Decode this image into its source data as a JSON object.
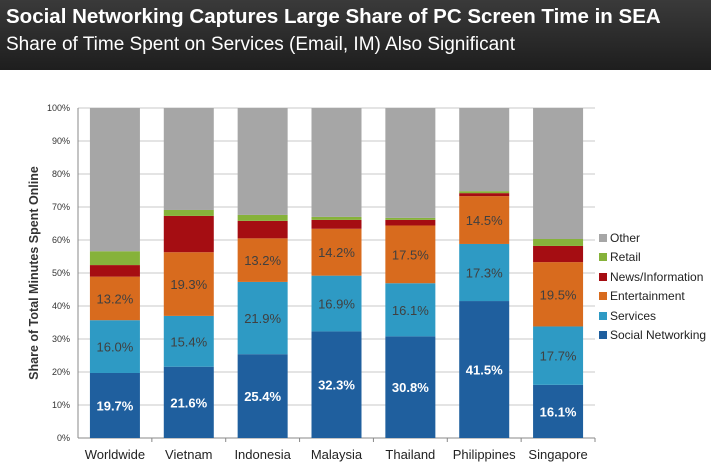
{
  "header": {
    "title": "Social Networking Captures Large Share of PC Screen Time in SEA",
    "subtitle": "Share of Time Spent on Services (Email, IM) Also Significant"
  },
  "chart_data": {
    "type": "bar",
    "stacked": true,
    "title": "",
    "xlabel": "",
    "ylabel": "Share of Total Minutes Spent Online",
    "ylim": [
      0,
      100
    ],
    "yticks": [
      "0%",
      "10%",
      "20%",
      "30%",
      "40%",
      "50%",
      "60%",
      "70%",
      "80%",
      "90%",
      "100%"
    ],
    "grid": true,
    "legend_position": "right",
    "categories": [
      "Worldwide",
      "Vietnam",
      "Indonesia",
      "Malaysia",
      "Thailand",
      "Philippines",
      "Singapore"
    ],
    "series": [
      {
        "name": "Social Networking",
        "color": "#1f5f9e",
        "labeled": true,
        "values": [
          19.7,
          21.6,
          25.4,
          32.3,
          30.8,
          41.5,
          16.1
        ]
      },
      {
        "name": "Services",
        "color": "#2e9ac4",
        "labeled": true,
        "values": [
          16.0,
          15.4,
          21.9,
          16.9,
          16.1,
          17.3,
          17.7
        ]
      },
      {
        "name": "Entertainment",
        "color": "#d86b1e",
        "labeled": true,
        "values": [
          13.2,
          19.3,
          13.2,
          14.2,
          17.5,
          14.5,
          19.5
        ]
      },
      {
        "name": "News/Information",
        "color": "#a50d12",
        "labeled": false,
        "values": [
          3.5,
          11.0,
          5.3,
          2.7,
          1.7,
          0.9,
          4.9
        ]
      },
      {
        "name": "Retail",
        "color": "#86b23a",
        "labeled": false,
        "values": [
          4.2,
          1.8,
          1.8,
          0.9,
          0.6,
          0.6,
          2.1
        ]
      },
      {
        "name": "Other",
        "color": "#a6a6a6",
        "labeled": false,
        "values": [
          43.4,
          30.9,
          32.4,
          33.0,
          33.3,
          25.2,
          39.7
        ]
      }
    ]
  }
}
